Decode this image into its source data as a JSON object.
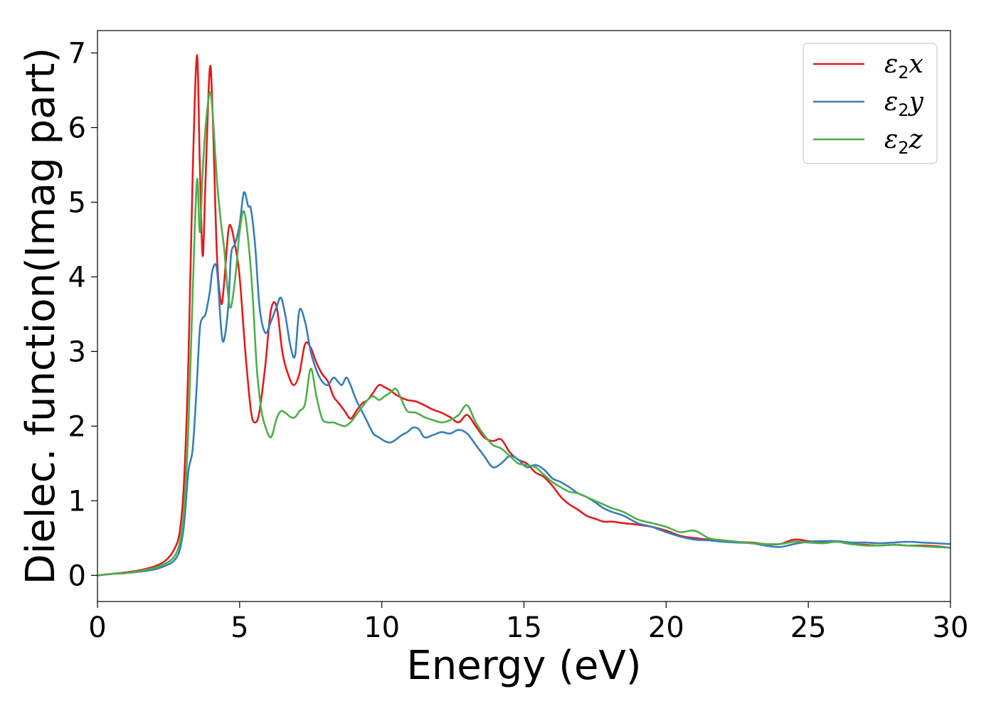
{
  "chart_data": {
    "type": "line",
    "title": "",
    "xlabel": "Energy (eV)",
    "ylabel": "Dielec. function(Imag part)",
    "xlim": [
      0,
      30
    ],
    "ylim": [
      -0.35,
      7.3
    ],
    "xticks": [
      0,
      5,
      10,
      15,
      20,
      25,
      30
    ],
    "yticks": [
      0,
      1,
      2,
      3,
      4,
      5,
      6,
      7
    ],
    "grid": false,
    "legend_position": "top-right",
    "series": [
      {
        "name": "ε2x",
        "legend_base": "ε",
        "legend_sub": "2",
        "legend_var": "x",
        "color": "#e41a1c",
        "x": [
          0,
          0.5,
          1,
          1.5,
          2,
          2.4,
          2.7,
          2.9,
          3.05,
          3.2,
          3.35,
          3.5,
          3.6,
          3.7,
          3.8,
          3.95,
          4.05,
          4.2,
          4.35,
          4.45,
          4.6,
          4.7,
          4.85,
          5.0,
          5.2,
          5.4,
          5.55,
          5.7,
          5.9,
          6.1,
          6.3,
          6.5,
          6.7,
          6.9,
          7.1,
          7.3,
          7.5,
          7.7,
          7.9,
          8.1,
          8.3,
          8.5,
          8.7,
          8.9,
          9.1,
          9.3,
          9.5,
          9.7,
          9.9,
          10.1,
          10.3,
          10.5,
          10.7,
          10.9,
          11.2,
          11.5,
          11.8,
          12.1,
          12.4,
          12.7,
          13.0,
          13.3,
          13.6,
          13.9,
          14.2,
          14.5,
          14.8,
          15.1,
          15.4,
          15.7,
          16.0,
          16.3,
          16.6,
          16.9,
          17.2,
          17.5,
          17.8,
          18.1,
          18.5,
          19.0,
          19.5,
          20.0,
          20.5,
          21.0,
          21.5,
          22.0,
          22.5,
          23.0,
          23.5,
          24.0,
          24.5,
          25.0,
          25.5,
          26.0,
          26.5,
          27.0,
          27.5,
          28.0,
          28.5,
          29.0,
          29.5,
          30.0
        ],
        "y": [
          0,
          0.02,
          0.04,
          0.07,
          0.12,
          0.2,
          0.35,
          0.6,
          1.3,
          2.9,
          5.4,
          6.97,
          5.5,
          4.28,
          5.3,
          6.79,
          6.2,
          4.3,
          3.65,
          3.9,
          4.6,
          4.67,
          4.4,
          4.0,
          3.0,
          2.2,
          2.05,
          2.2,
          2.8,
          3.55,
          3.6,
          3.0,
          2.7,
          2.55,
          2.7,
          3.1,
          3.05,
          2.85,
          2.7,
          2.6,
          2.4,
          2.3,
          2.2,
          2.1,
          2.2,
          2.3,
          2.35,
          2.45,
          2.55,
          2.52,
          2.48,
          2.42,
          2.38,
          2.35,
          2.33,
          2.28,
          2.22,
          2.18,
          2.12,
          2.05,
          2.15,
          2.0,
          1.85,
          1.8,
          1.82,
          1.65,
          1.55,
          1.5,
          1.38,
          1.32,
          1.2,
          1.05,
          0.95,
          0.88,
          0.8,
          0.76,
          0.72,
          0.72,
          0.7,
          0.68,
          0.65,
          0.6,
          0.53,
          0.5,
          0.48,
          0.47,
          0.45,
          0.44,
          0.42,
          0.42,
          0.48,
          0.46,
          0.44,
          0.45,
          0.42,
          0.41,
          0.4,
          0.41,
          0.4,
          0.4,
          0.39,
          0.37
        ]
      },
      {
        "name": "ε2y",
        "legend_base": "ε",
        "legend_sub": "2",
        "legend_var": "y",
        "color": "#377eb8",
        "x": [
          0,
          0.5,
          1,
          1.5,
          2,
          2.4,
          2.7,
          2.9,
          3.05,
          3.2,
          3.35,
          3.5,
          3.6,
          3.7,
          3.8,
          3.95,
          4.05,
          4.2,
          4.35,
          4.45,
          4.6,
          4.7,
          4.85,
          5.0,
          5.15,
          5.3,
          5.4,
          5.55,
          5.7,
          5.9,
          6.1,
          6.3,
          6.45,
          6.6,
          6.8,
          6.95,
          7.1,
          7.3,
          7.5,
          7.7,
          7.9,
          8.1,
          8.3,
          8.45,
          8.6,
          8.75,
          8.9,
          9.1,
          9.3,
          9.5,
          9.7,
          9.9,
          10.1,
          10.3,
          10.5,
          10.7,
          10.9,
          11.1,
          11.3,
          11.5,
          11.8,
          12.1,
          12.4,
          12.7,
          13.0,
          13.3,
          13.6,
          13.9,
          14.2,
          14.5,
          14.8,
          15.1,
          15.4,
          15.7,
          16.0,
          16.3,
          16.6,
          16.9,
          17.2,
          17.5,
          17.8,
          18.1,
          18.5,
          19.0,
          19.5,
          20.0,
          20.5,
          21.0,
          21.5,
          22.0,
          22.5,
          23.0,
          23.5,
          24.0,
          24.5,
          25.0,
          25.5,
          26.0,
          26.5,
          27.0,
          27.5,
          28.0,
          28.5,
          29.0,
          29.5,
          30.0
        ],
        "y": [
          0,
          0.02,
          0.03,
          0.05,
          0.08,
          0.13,
          0.2,
          0.35,
          0.7,
          1.4,
          1.7,
          2.6,
          3.3,
          3.45,
          3.5,
          3.8,
          4.1,
          4.1,
          3.3,
          3.15,
          3.6,
          4.3,
          4.45,
          4.7,
          5.13,
          4.95,
          4.9,
          4.4,
          3.6,
          3.25,
          3.4,
          3.6,
          3.72,
          3.5,
          3.05,
          2.95,
          3.55,
          3.4,
          3.0,
          2.75,
          2.6,
          2.55,
          2.65,
          2.6,
          2.55,
          2.65,
          2.55,
          2.35,
          2.2,
          2.05,
          1.9,
          1.85,
          1.8,
          1.78,
          1.82,
          1.88,
          1.92,
          1.98,
          1.96,
          1.85,
          1.88,
          1.92,
          1.9,
          1.95,
          1.9,
          1.75,
          1.6,
          1.45,
          1.5,
          1.6,
          1.55,
          1.45,
          1.48,
          1.42,
          1.3,
          1.25,
          1.18,
          1.1,
          1.05,
          0.98,
          0.9,
          0.85,
          0.8,
          0.7,
          0.65,
          0.58,
          0.52,
          0.48,
          0.47,
          0.45,
          0.44,
          0.43,
          0.4,
          0.38,
          0.42,
          0.45,
          0.46,
          0.46,
          0.44,
          0.44,
          0.43,
          0.44,
          0.45,
          0.44,
          0.43,
          0.42
        ]
      },
      {
        "name": "ε2z",
        "legend_base": "ε",
        "legend_sub": "2",
        "legend_var": "z",
        "color": "#4daf4a",
        "x": [
          0,
          0.5,
          1,
          1.5,
          2,
          2.4,
          2.7,
          2.9,
          3.05,
          3.2,
          3.35,
          3.5,
          3.6,
          3.7,
          3.8,
          3.95,
          4.05,
          4.2,
          4.35,
          4.45,
          4.6,
          4.7,
          4.85,
          5.0,
          5.15,
          5.3,
          5.45,
          5.6,
          5.75,
          5.9,
          6.1,
          6.3,
          6.45,
          6.6,
          6.8,
          6.95,
          7.1,
          7.3,
          7.5,
          7.7,
          7.9,
          8.1,
          8.3,
          8.5,
          8.7,
          8.9,
          9.1,
          9.3,
          9.5,
          9.7,
          9.9,
          10.1,
          10.3,
          10.5,
          10.7,
          10.9,
          11.2,
          11.5,
          11.8,
          12.1,
          12.4,
          12.7,
          13.0,
          13.3,
          13.6,
          13.9,
          14.2,
          14.5,
          14.8,
          15.1,
          15.4,
          15.7,
          16.0,
          16.3,
          16.6,
          16.9,
          17.2,
          17.5,
          17.8,
          18.1,
          18.5,
          19.0,
          19.5,
          20.0,
          20.5,
          21.0,
          21.5,
          22.0,
          22.5,
          23.0,
          23.5,
          24.0,
          24.5,
          25.0,
          25.5,
          26.0,
          26.5,
          27.0,
          27.5,
          28.0,
          28.5,
          29.0,
          29.5,
          30.0
        ],
        "y": [
          0,
          0.02,
          0.03,
          0.06,
          0.1,
          0.16,
          0.25,
          0.45,
          0.9,
          2.0,
          3.8,
          5.3,
          4.6,
          5.4,
          6.0,
          6.47,
          6.2,
          5.3,
          4.7,
          4.4,
          3.75,
          3.6,
          4.0,
          4.6,
          4.88,
          4.5,
          3.8,
          2.8,
          2.25,
          2.0,
          1.85,
          2.1,
          2.2,
          2.18,
          2.12,
          2.12,
          2.2,
          2.3,
          2.77,
          2.4,
          2.1,
          2.05,
          2.05,
          2.02,
          2.0,
          2.05,
          2.15,
          2.25,
          2.35,
          2.4,
          2.35,
          2.4,
          2.45,
          2.5,
          2.35,
          2.2,
          2.18,
          2.12,
          2.08,
          2.05,
          2.08,
          2.15,
          2.28,
          2.05,
          1.88,
          1.75,
          1.7,
          1.6,
          1.5,
          1.48,
          1.45,
          1.35,
          1.25,
          1.18,
          1.12,
          1.1,
          1.05,
          1.0,
          0.95,
          0.9,
          0.85,
          0.75,
          0.7,
          0.65,
          0.58,
          0.6,
          0.5,
          0.47,
          0.45,
          0.43,
          0.42,
          0.42,
          0.45,
          0.44,
          0.43,
          0.45,
          0.42,
          0.4,
          0.4,
          0.41,
          0.4,
          0.39,
          0.38,
          0.37
        ]
      }
    ]
  }
}
